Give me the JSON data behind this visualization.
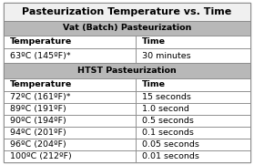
{
  "title": "Pasteurization Temperature vs. Time",
  "section1_header": "Vat (Batch) Pasteurization",
  "section2_header": "HTST Pasteurization",
  "col_headers": [
    "Temperature",
    "Time"
  ],
  "vat_rows": [
    [
      "63ºC (145ºF)*",
      "30 minutes"
    ]
  ],
  "htst_rows": [
    [
      "72ºC (161ºF)*",
      "15 seconds"
    ],
    [
      "89ºC (191ºF)",
      "1.0 second"
    ],
    [
      "90ºC (194ºF)",
      "0.5 seconds"
    ],
    [
      "94ºC (201ºF)",
      "0.1 seconds"
    ],
    [
      "96ºC (204ºF)",
      "0.05 seconds"
    ],
    [
      "100ºC (212ºF)",
      "0.01 seconds"
    ]
  ],
  "bg_color": "#ffffff",
  "title_bg": "#f0f0f0",
  "header_bg": "#b8b8b8",
  "border_color": "#888888",
  "text_color": "#000000",
  "font_size": 6.8,
  "bold_font_size": 6.8,
  "col_split": 0.535,
  "fig_w": 2.79,
  "fig_h": 1.81,
  "dpi": 100
}
